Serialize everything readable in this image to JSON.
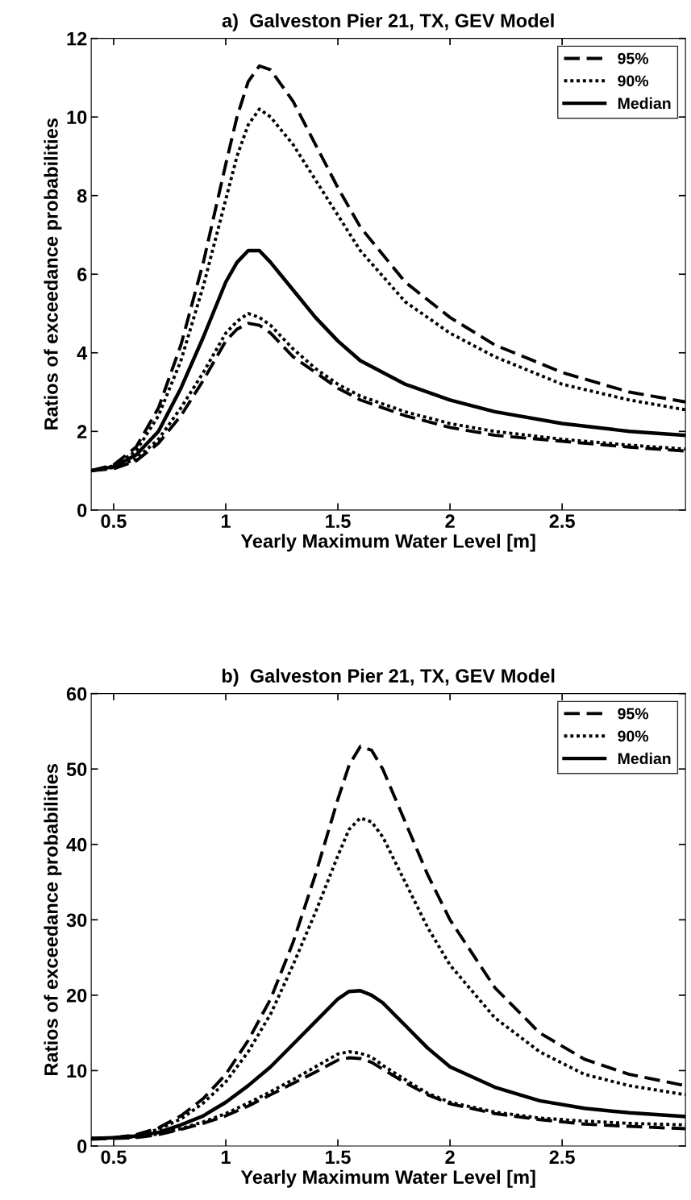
{
  "chart_data": [
    {
      "type": "line",
      "title": "a)  Galveston Pier 21, TX, GEV Model",
      "xlabel": "Yearly Maximum Water Level [m]",
      "ylabel": "Ratios of exceedance probabilities",
      "x": [
        0.4,
        0.5,
        0.6,
        0.7,
        0.8,
        0.9,
        1.0,
        1.05,
        1.1,
        1.15,
        1.2,
        1.3,
        1.4,
        1.5,
        1.6,
        1.8,
        2.0,
        2.2,
        2.5,
        2.8,
        3.05
      ],
      "series": [
        {
          "name": "95%",
          "color": "#000000",
          "line_style": "dashed",
          "values": [
            1.0,
            1.15,
            1.6,
            2.6,
            4.2,
            6.3,
            8.8,
            10.0,
            10.9,
            11.3,
            11.2,
            10.4,
            9.3,
            8.2,
            7.2,
            5.8,
            4.9,
            4.2,
            3.5,
            3.0,
            2.75
          ]
        },
        {
          "name": "90%",
          "color": "#000000",
          "line_style": "dotted",
          "values": [
            1.0,
            1.12,
            1.5,
            2.4,
            3.8,
            5.7,
            7.9,
            9.0,
            9.8,
            10.2,
            10.0,
            9.3,
            8.4,
            7.5,
            6.6,
            5.3,
            4.5,
            3.9,
            3.2,
            2.8,
            2.55
          ]
        },
        {
          "name": "Median",
          "color": "#000000",
          "line_style": "solid",
          "values": [
            1.0,
            1.1,
            1.4,
            2.0,
            3.1,
            4.4,
            5.8,
            6.3,
            6.6,
            6.6,
            6.3,
            5.6,
            4.9,
            4.3,
            3.8,
            3.2,
            2.8,
            2.5,
            2.2,
            2.0,
            1.9
          ]
        },
        {
          "color": "#000000",
          "line_style": "dotted",
          "values": [
            1.0,
            1.08,
            1.3,
            1.8,
            2.6,
            3.5,
            4.5,
            4.8,
            5.0,
            4.9,
            4.7,
            4.1,
            3.6,
            3.2,
            2.9,
            2.5,
            2.2,
            2.0,
            1.8,
            1.65,
            1.55
          ]
        },
        {
          "color": "#000000",
          "line_style": "dashed",
          "values": [
            1.0,
            1.05,
            1.25,
            1.7,
            2.4,
            3.3,
            4.3,
            4.6,
            4.75,
            4.7,
            4.5,
            3.9,
            3.5,
            3.1,
            2.8,
            2.4,
            2.1,
            1.9,
            1.75,
            1.6,
            1.5
          ]
        }
      ],
      "xlim": [
        0.4,
        3.05
      ],
      "xticks": [
        0.5,
        1,
        1.5,
        2,
        2.5
      ],
      "ylim": [
        0,
        12
      ],
      "yticks": [
        0,
        2,
        4,
        6,
        8,
        10,
        12
      ],
      "grid": false,
      "legend": "top right"
    },
    {
      "type": "line",
      "title": "b)  Galveston Pier 21, TX, GEV Model",
      "xlabel": "Yearly Maximum Water Level [m]",
      "ylabel": "Ratios of exceedance probabilities",
      "x": [
        0.4,
        0.5,
        0.6,
        0.7,
        0.8,
        0.9,
        1.0,
        1.1,
        1.2,
        1.3,
        1.4,
        1.5,
        1.55,
        1.6,
        1.65,
        1.7,
        1.8,
        1.9,
        2.0,
        2.2,
        2.4,
        2.6,
        2.8,
        3.05
      ],
      "series": [
        {
          "name": "95%",
          "color": "#000000",
          "line_style": "dashed",
          "values": [
            1,
            1.1,
            1.5,
            2.4,
            4,
            6.3,
            9.5,
            14,
            19.5,
            27,
            36,
            46,
            50.5,
            53,
            52.5,
            50,
            43,
            36,
            30,
            21,
            15,
            11.5,
            9.5,
            8.0
          ]
        },
        {
          "name": "90%",
          "color": "#000000",
          "line_style": "dotted",
          "values": [
            1,
            1.1,
            1.4,
            2.2,
            3.6,
            5.7,
            8.5,
            12.5,
            17.5,
            24,
            31,
            38.5,
            42,
            43.5,
            43,
            41,
            35,
            29,
            24,
            17,
            12.5,
            9.5,
            8,
            6.8
          ]
        },
        {
          "name": "Median",
          "color": "#000000",
          "line_style": "solid",
          "values": [
            1,
            1.1,
            1.3,
            1.8,
            2.8,
            4,
            5.8,
            8,
            10.5,
            13.5,
            16.5,
            19.5,
            20.5,
            20.6,
            20,
            19,
            16,
            13,
            10.5,
            7.8,
            6,
            5,
            4.4,
            3.9
          ]
        },
        {
          "color": "#000000",
          "line_style": "dotted",
          "values": [
            1,
            1.1,
            1.2,
            1.6,
            2.3,
            3.2,
            4.3,
            5.7,
            7.2,
            8.8,
            10.5,
            12.2,
            12.5,
            12.3,
            11.8,
            10.7,
            8.8,
            7,
            5.8,
            4.5,
            3.7,
            3.3,
            3.0,
            2.8
          ]
        },
        {
          "color": "#000000",
          "line_style": "dashed",
          "values": [
            0.9,
            1.0,
            1.1,
            1.5,
            2.2,
            3,
            4,
            5.3,
            6.8,
            8.3,
            9.8,
            11.4,
            11.7,
            11.6,
            11.1,
            10.2,
            8.4,
            6.8,
            5.6,
            4.3,
            3.5,
            2.9,
            2.6,
            2.3
          ]
        }
      ],
      "xlim": [
        0.4,
        3.05
      ],
      "xticks": [
        0.5,
        1,
        1.5,
        2,
        2.5
      ],
      "ylim": [
        0,
        60
      ],
      "yticks": [
        0,
        10,
        20,
        30,
        40,
        50,
        60
      ],
      "grid": false,
      "legend": "top right"
    }
  ]
}
